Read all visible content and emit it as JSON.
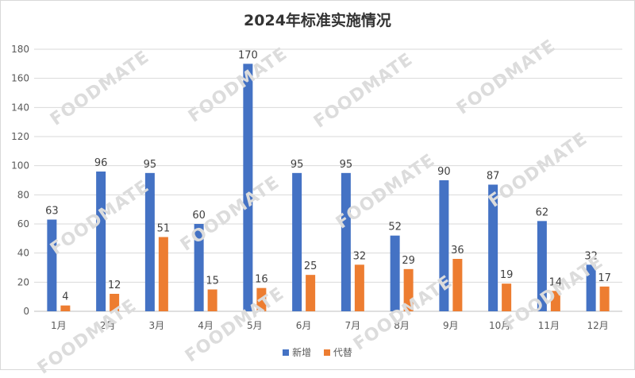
{
  "chart_data": {
    "type": "bar",
    "title": "2024年标准实施情况",
    "categories": [
      "1月",
      "2月",
      "3月",
      "4月",
      "5月",
      "6月",
      "7月",
      "8月",
      "9月",
      "10月",
      "11月",
      "12月"
    ],
    "series": [
      {
        "name": "新增",
        "color": "#4472C4",
        "values": [
          63,
          96,
          95,
          60,
          170,
          95,
          95,
          52,
          90,
          87,
          62,
          32
        ]
      },
      {
        "name": "代替",
        "color": "#ED7D31",
        "values": [
          4,
          12,
          51,
          15,
          16,
          25,
          32,
          29,
          36,
          19,
          14,
          17
        ]
      }
    ],
    "ylim": [
      0,
      180
    ],
    "yticks": [
      0,
      20,
      40,
      60,
      80,
      100,
      120,
      140,
      160,
      180
    ],
    "grid": true,
    "legend_position": "bottom",
    "xlabel": "",
    "ylabel": ""
  },
  "watermark": "FOODMATE"
}
